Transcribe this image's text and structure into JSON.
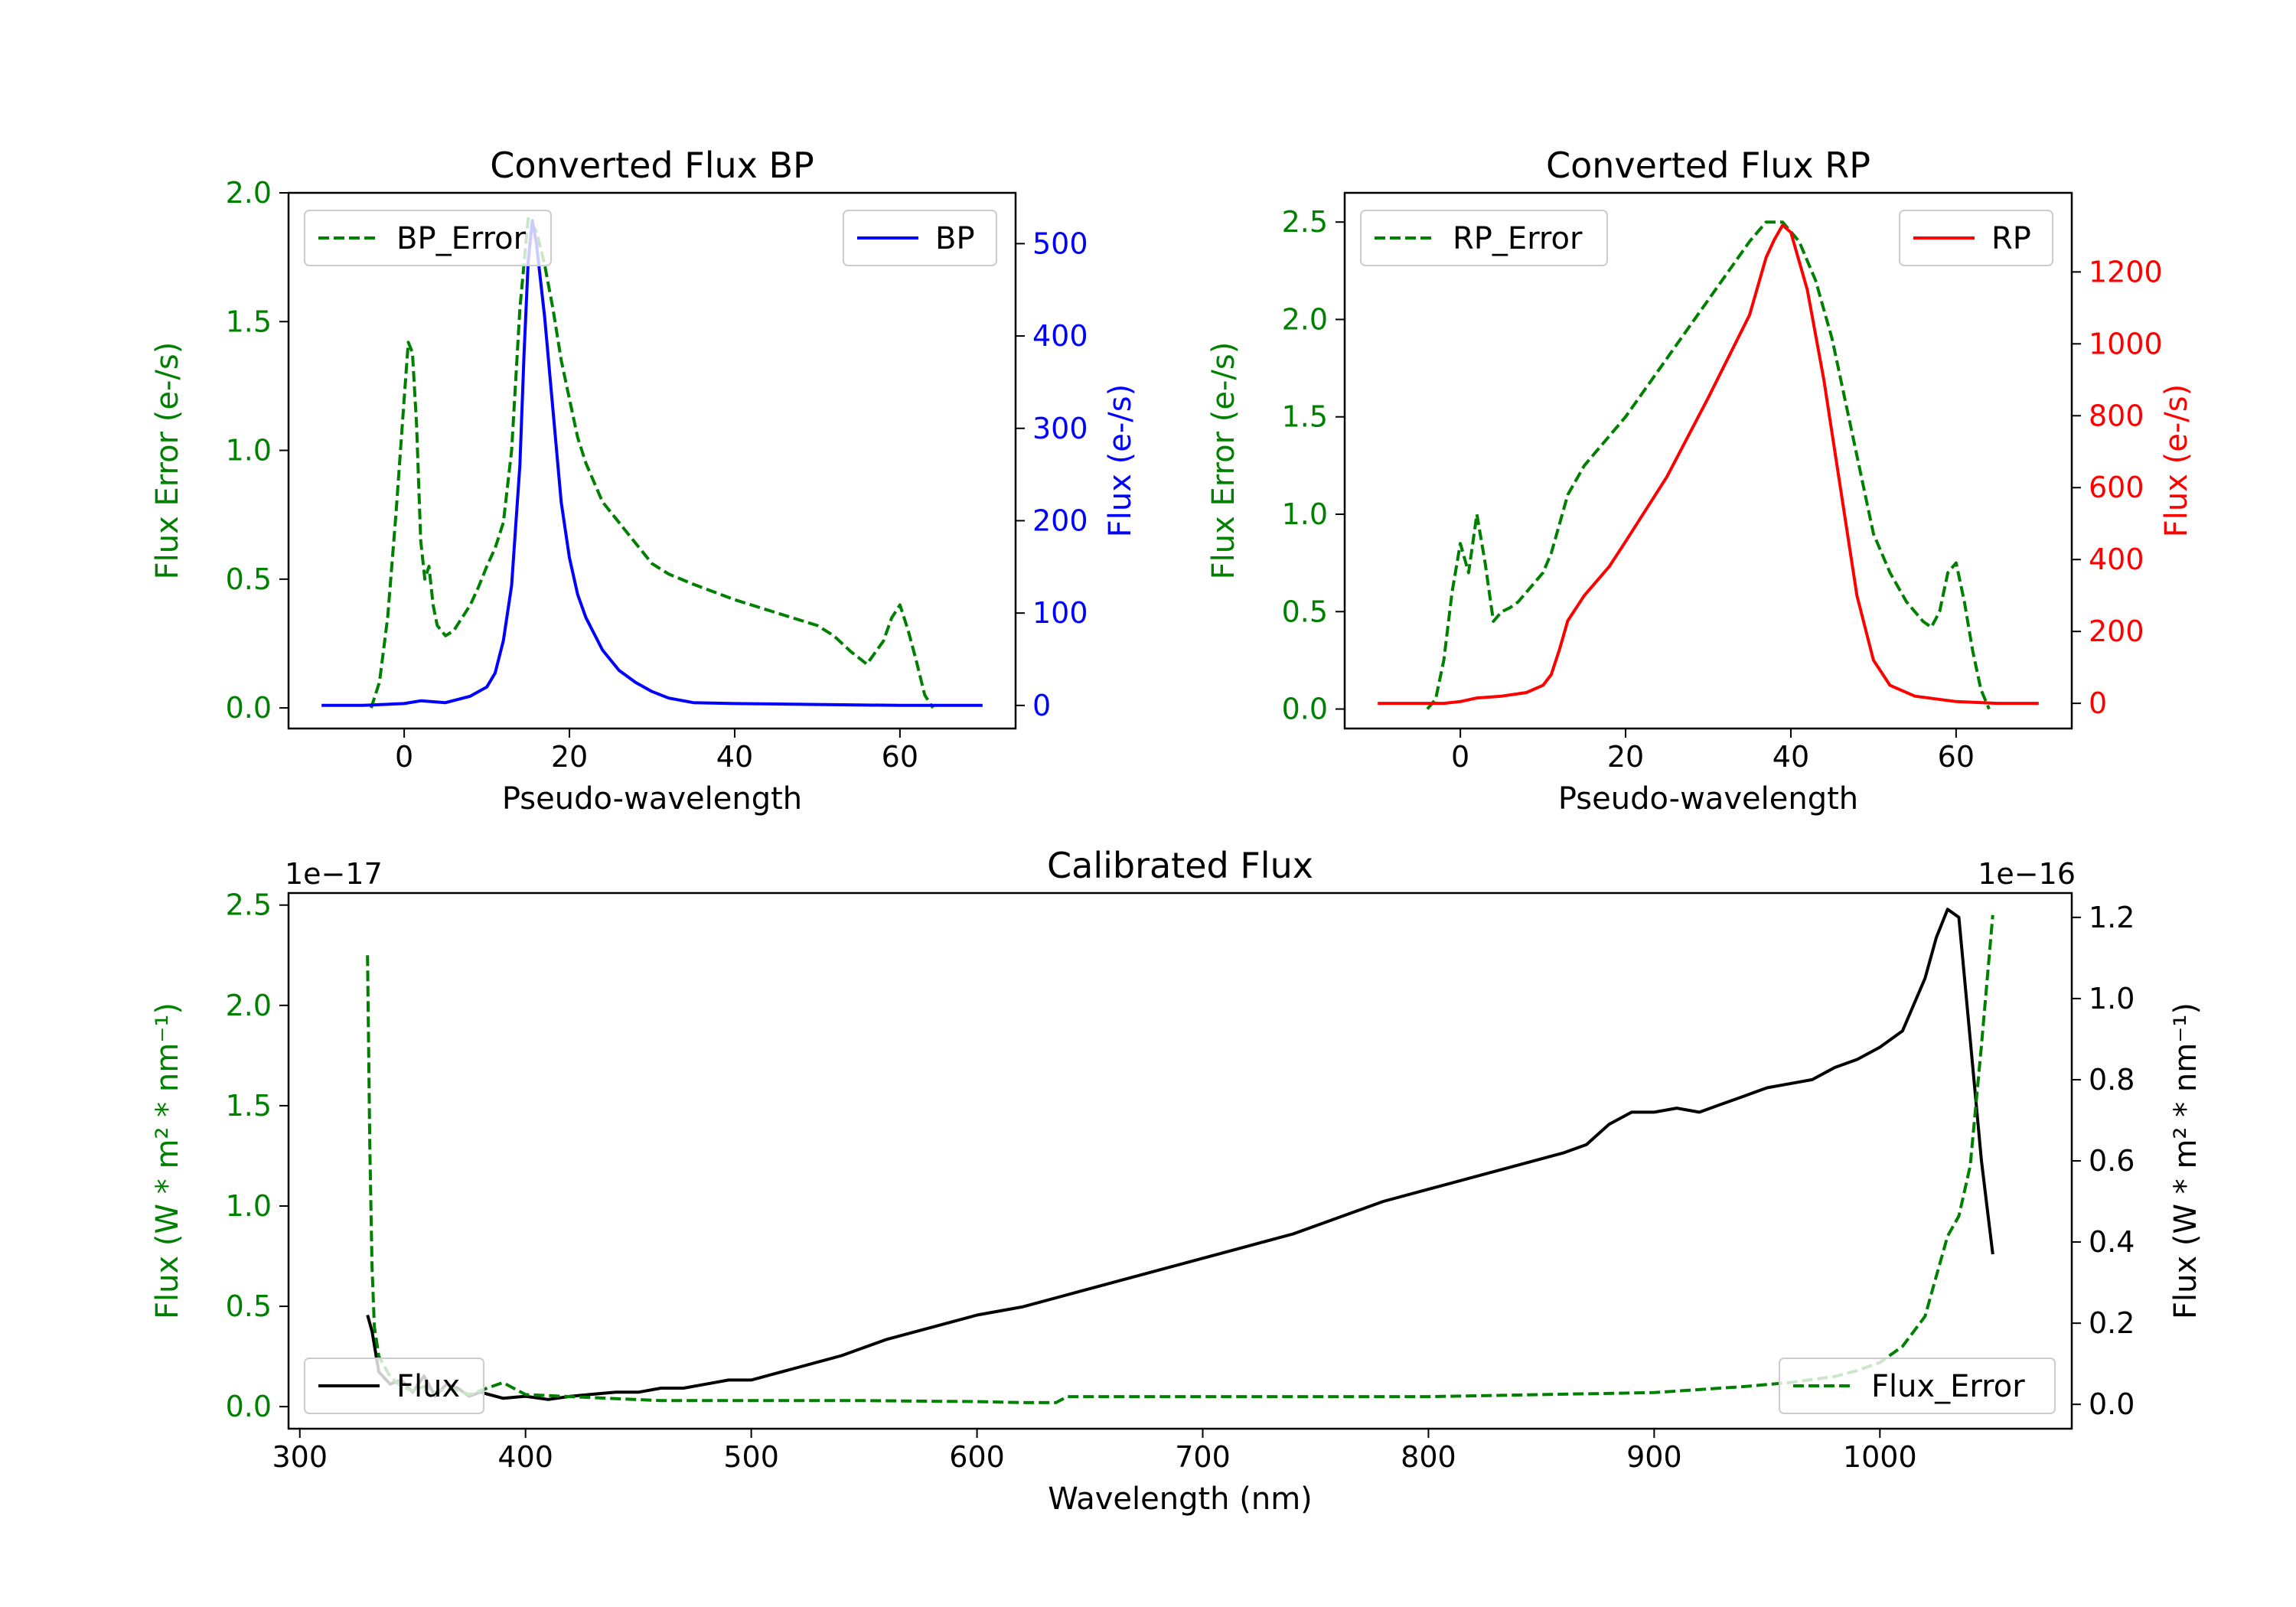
{
  "colors": {
    "error": "#008000",
    "bp": "#0000ff",
    "rp": "#ff0000",
    "flux": "#000000",
    "axis": "#000000"
  },
  "chart_data": [
    {
      "id": "bp",
      "type": "line",
      "title": "Converted Flux BP",
      "xlabel": "Pseudo-wavelength",
      "xlim": [
        -14,
        74
      ],
      "xticks": [
        0,
        20,
        40,
        60
      ],
      "left_axis": {
        "label": "Flux Error (e-/s)",
        "lim": [
          -0.08,
          2.0
        ],
        "ticks": [
          "0.0",
          "0.5",
          "1.0",
          "1.5",
          "2.0"
        ],
        "tick_values": [
          0,
          0.5,
          1.0,
          1.5,
          2.0
        ],
        "color_key": "error"
      },
      "right_axis": {
        "label": "Flux (e-/s)",
        "lim": [
          -25,
          555
        ],
        "ticks": [
          "0",
          "100",
          "200",
          "300",
          "400",
          "500"
        ],
        "tick_values": [
          0,
          100,
          200,
          300,
          400,
          500
        ],
        "color_key": "bp"
      },
      "legend_left": {
        "label": "BP_Error",
        "position": "top-left"
      },
      "legend_right": {
        "label": "BP",
        "position": "top-right"
      },
      "series": [
        {
          "name": "BP_Error",
          "axis": "left",
          "style": "dashed",
          "color_key": "error",
          "x": [
            -4,
            -3,
            -2,
            -1,
            0,
            0.5,
            1,
            1.5,
            2,
            2.5,
            3,
            3.5,
            4,
            5,
            6,
            7,
            8,
            9,
            10,
            11,
            12,
            13,
            14,
            15,
            16,
            17,
            18,
            19,
            20,
            21,
            22,
            24,
            26,
            28,
            30,
            32,
            35,
            40,
            45,
            50,
            52,
            54,
            56,
            58,
            59,
            60,
            61,
            62,
            63,
            64
          ],
          "y": [
            0.0,
            0.1,
            0.35,
            0.75,
            1.2,
            1.42,
            1.38,
            1.1,
            0.65,
            0.5,
            0.55,
            0.4,
            0.32,
            0.28,
            0.3,
            0.35,
            0.4,
            0.47,
            0.55,
            0.62,
            0.72,
            1.0,
            1.55,
            1.9,
            1.85,
            1.72,
            1.55,
            1.35,
            1.2,
            1.05,
            0.95,
            0.8,
            0.72,
            0.64,
            0.56,
            0.52,
            0.48,
            0.42,
            0.37,
            0.32,
            0.28,
            0.22,
            0.17,
            0.26,
            0.35,
            0.4,
            0.3,
            0.18,
            0.05,
            0.0
          ]
        },
        {
          "name": "BP",
          "axis": "right",
          "style": "solid",
          "color_key": "bp",
          "x": [
            -10,
            -5,
            0,
            2,
            5,
            8,
            10,
            11,
            12,
            13,
            14,
            14.5,
            15,
            15.5,
            16,
            17,
            18,
            19,
            20,
            21,
            22,
            24,
            26,
            28,
            30,
            32,
            35,
            40,
            50,
            60,
            70
          ],
          "y": [
            0,
            0,
            2,
            5,
            3,
            10,
            20,
            35,
            70,
            130,
            260,
            380,
            480,
            525,
            500,
            420,
            320,
            220,
            160,
            120,
            95,
            60,
            38,
            25,
            15,
            8,
            3,
            2,
            1,
            0,
            0
          ]
        }
      ]
    },
    {
      "id": "rp",
      "type": "line",
      "title": "Converted Flux RP",
      "xlabel": "Pseudo-wavelength",
      "xlim": [
        -14,
        74
      ],
      "xticks": [
        0,
        20,
        40,
        60
      ],
      "left_axis": {
        "label": "Flux Error (e-/s)",
        "lim": [
          -0.1,
          2.65
        ],
        "ticks": [
          "0.0",
          "0.5",
          "1.0",
          "1.5",
          "2.0",
          "2.5"
        ],
        "tick_values": [
          0,
          0.5,
          1.0,
          1.5,
          2.0,
          2.5
        ],
        "color_key": "error"
      },
      "right_axis": {
        "label": "Flux (e-/s)",
        "lim": [
          -70,
          1420
        ],
        "ticks": [
          "0",
          "200",
          "400",
          "600",
          "800",
          "1000",
          "1200"
        ],
        "tick_values": [
          0,
          200,
          400,
          600,
          800,
          1000,
          1200
        ],
        "color_key": "rp"
      },
      "legend_left": {
        "label": "RP_Error",
        "position": "top-left"
      },
      "legend_right": {
        "label": "RP",
        "position": "top-right"
      },
      "series": [
        {
          "name": "RP_Error",
          "axis": "left",
          "style": "dashed",
          "color_key": "error",
          "x": [
            -4,
            -3,
            -2,
            -1,
            0,
            1,
            2,
            3,
            4,
            5,
            6,
            7,
            8,
            9,
            10,
            11,
            12,
            13,
            15,
            20,
            25,
            30,
            35,
            37,
            39,
            41,
            43,
            45,
            48,
            50,
            52,
            54,
            56,
            57,
            58,
            59,
            60,
            61,
            62,
            63,
            64
          ],
          "y": [
            0.0,
            0.05,
            0.25,
            0.6,
            0.85,
            0.7,
            1.0,
            0.75,
            0.45,
            0.5,
            0.52,
            0.55,
            0.6,
            0.65,
            0.7,
            0.8,
            0.95,
            1.1,
            1.25,
            1.5,
            1.8,
            2.1,
            2.4,
            2.5,
            2.5,
            2.4,
            2.2,
            1.9,
            1.3,
            0.9,
            0.7,
            0.55,
            0.45,
            0.42,
            0.5,
            0.7,
            0.75,
            0.55,
            0.3,
            0.1,
            0.0
          ]
        },
        {
          "name": "RP",
          "axis": "right",
          "style": "solid",
          "color_key": "rp",
          "x": [
            -10,
            -5,
            -2,
            0,
            2,
            5,
            8,
            10,
            11,
            12,
            13,
            15,
            18,
            20,
            25,
            30,
            35,
            37,
            38,
            39,
            40,
            42,
            44,
            46,
            48,
            50,
            52,
            55,
            60,
            65,
            70
          ],
          "y": [
            0,
            0,
            0,
            5,
            15,
            20,
            30,
            50,
            80,
            150,
            230,
            300,
            380,
            450,
            630,
            850,
            1080,
            1240,
            1290,
            1330,
            1310,
            1150,
            900,
            600,
            300,
            120,
            50,
            20,
            5,
            0,
            0
          ]
        }
      ]
    },
    {
      "id": "calibrated",
      "type": "line",
      "title": "Calibrated Flux",
      "xlabel": "Wavelength (nm)",
      "xlim": [
        295,
        1085
      ],
      "xticks": [
        300,
        400,
        500,
        600,
        700,
        800,
        900,
        1000
      ],
      "left_axis": {
        "label": "Flux (W * m² * nm⁻¹)",
        "offset_text": "1e−17",
        "lim": [
          -0.11,
          2.56
        ],
        "ticks": [
          "0.0",
          "0.5",
          "1.0",
          "1.5",
          "2.0",
          "2.5"
        ],
        "tick_values": [
          0,
          0.5,
          1.0,
          1.5,
          2.0,
          2.5
        ],
        "color_key": "error"
      },
      "right_axis": {
        "label": "Flux (W * m² * nm⁻¹)",
        "offset_text": "1e−16",
        "lim": [
          -0.06,
          1.26
        ],
        "ticks": [
          "0.0",
          "0.2",
          "0.4",
          "0.6",
          "0.8",
          "1.0",
          "1.2"
        ],
        "tick_values": [
          0,
          0.2,
          0.4,
          0.6,
          0.8,
          1.0,
          1.2
        ],
        "color_key": "flux"
      },
      "legend_left": {
        "label": "Flux",
        "position": "lower-left"
      },
      "legend_right": {
        "label": "Flux_Error",
        "position": "lower-right"
      },
      "series": [
        {
          "name": "Flux",
          "axis": "right",
          "style": "solid",
          "color_key": "flux",
          "x": [
            330,
            332,
            335,
            340,
            345,
            350,
            355,
            360,
            365,
            370,
            375,
            380,
            390,
            400,
            410,
            420,
            430,
            440,
            450,
            460,
            470,
            480,
            490,
            500,
            520,
            540,
            560,
            580,
            600,
            620,
            640,
            660,
            680,
            700,
            720,
            740,
            760,
            780,
            800,
            820,
            840,
            860,
            870,
            880,
            890,
            900,
            910,
            920,
            930,
            940,
            950,
            960,
            970,
            980,
            990,
            1000,
            1010,
            1020,
            1025,
            1030,
            1035,
            1040,
            1045,
            1050
          ],
          "y": [
            0.22,
            0.18,
            0.08,
            0.05,
            0.06,
            0.03,
            0.07,
            0.02,
            0.05,
            0.04,
            0.02,
            0.03,
            0.015,
            0.02,
            0.012,
            0.02,
            0.025,
            0.03,
            0.03,
            0.04,
            0.04,
            0.05,
            0.06,
            0.06,
            0.09,
            0.12,
            0.16,
            0.19,
            0.22,
            0.24,
            0.27,
            0.3,
            0.33,
            0.36,
            0.39,
            0.42,
            0.46,
            0.5,
            0.53,
            0.56,
            0.59,
            0.62,
            0.64,
            0.69,
            0.72,
            0.72,
            0.73,
            0.72,
            0.74,
            0.76,
            0.78,
            0.79,
            0.8,
            0.83,
            0.85,
            0.88,
            0.92,
            1.05,
            1.15,
            1.22,
            1.2,
            0.9,
            0.6,
            0.37
          ]
        },
        {
          "name": "Flux_Error",
          "axis": "left",
          "style": "dashed",
          "color_key": "error",
          "x": [
            330,
            331,
            332,
            333,
            335,
            340,
            345,
            350,
            355,
            360,
            365,
            370,
            375,
            380,
            385,
            390,
            400,
            420,
            440,
            460,
            500,
            550,
            600,
            620,
            635,
            640,
            650,
            700,
            750,
            800,
            850,
            900,
            940,
            960,
            980,
            990,
            1000,
            1010,
            1020,
            1025,
            1030,
            1035,
            1040,
            1045,
            1050
          ],
          "y": [
            2.25,
            1.3,
            0.7,
            0.4,
            0.25,
            0.15,
            0.1,
            0.08,
            0.1,
            0.07,
            0.09,
            0.08,
            0.06,
            0.08,
            0.1,
            0.12,
            0.06,
            0.05,
            0.04,
            0.03,
            0.03,
            0.03,
            0.025,
            0.02,
            0.02,
            0.05,
            0.05,
            0.05,
            0.05,
            0.05,
            0.06,
            0.07,
            0.1,
            0.12,
            0.15,
            0.18,
            0.22,
            0.3,
            0.45,
            0.65,
            0.85,
            0.95,
            1.2,
            1.8,
            2.45
          ]
        }
      ]
    }
  ]
}
